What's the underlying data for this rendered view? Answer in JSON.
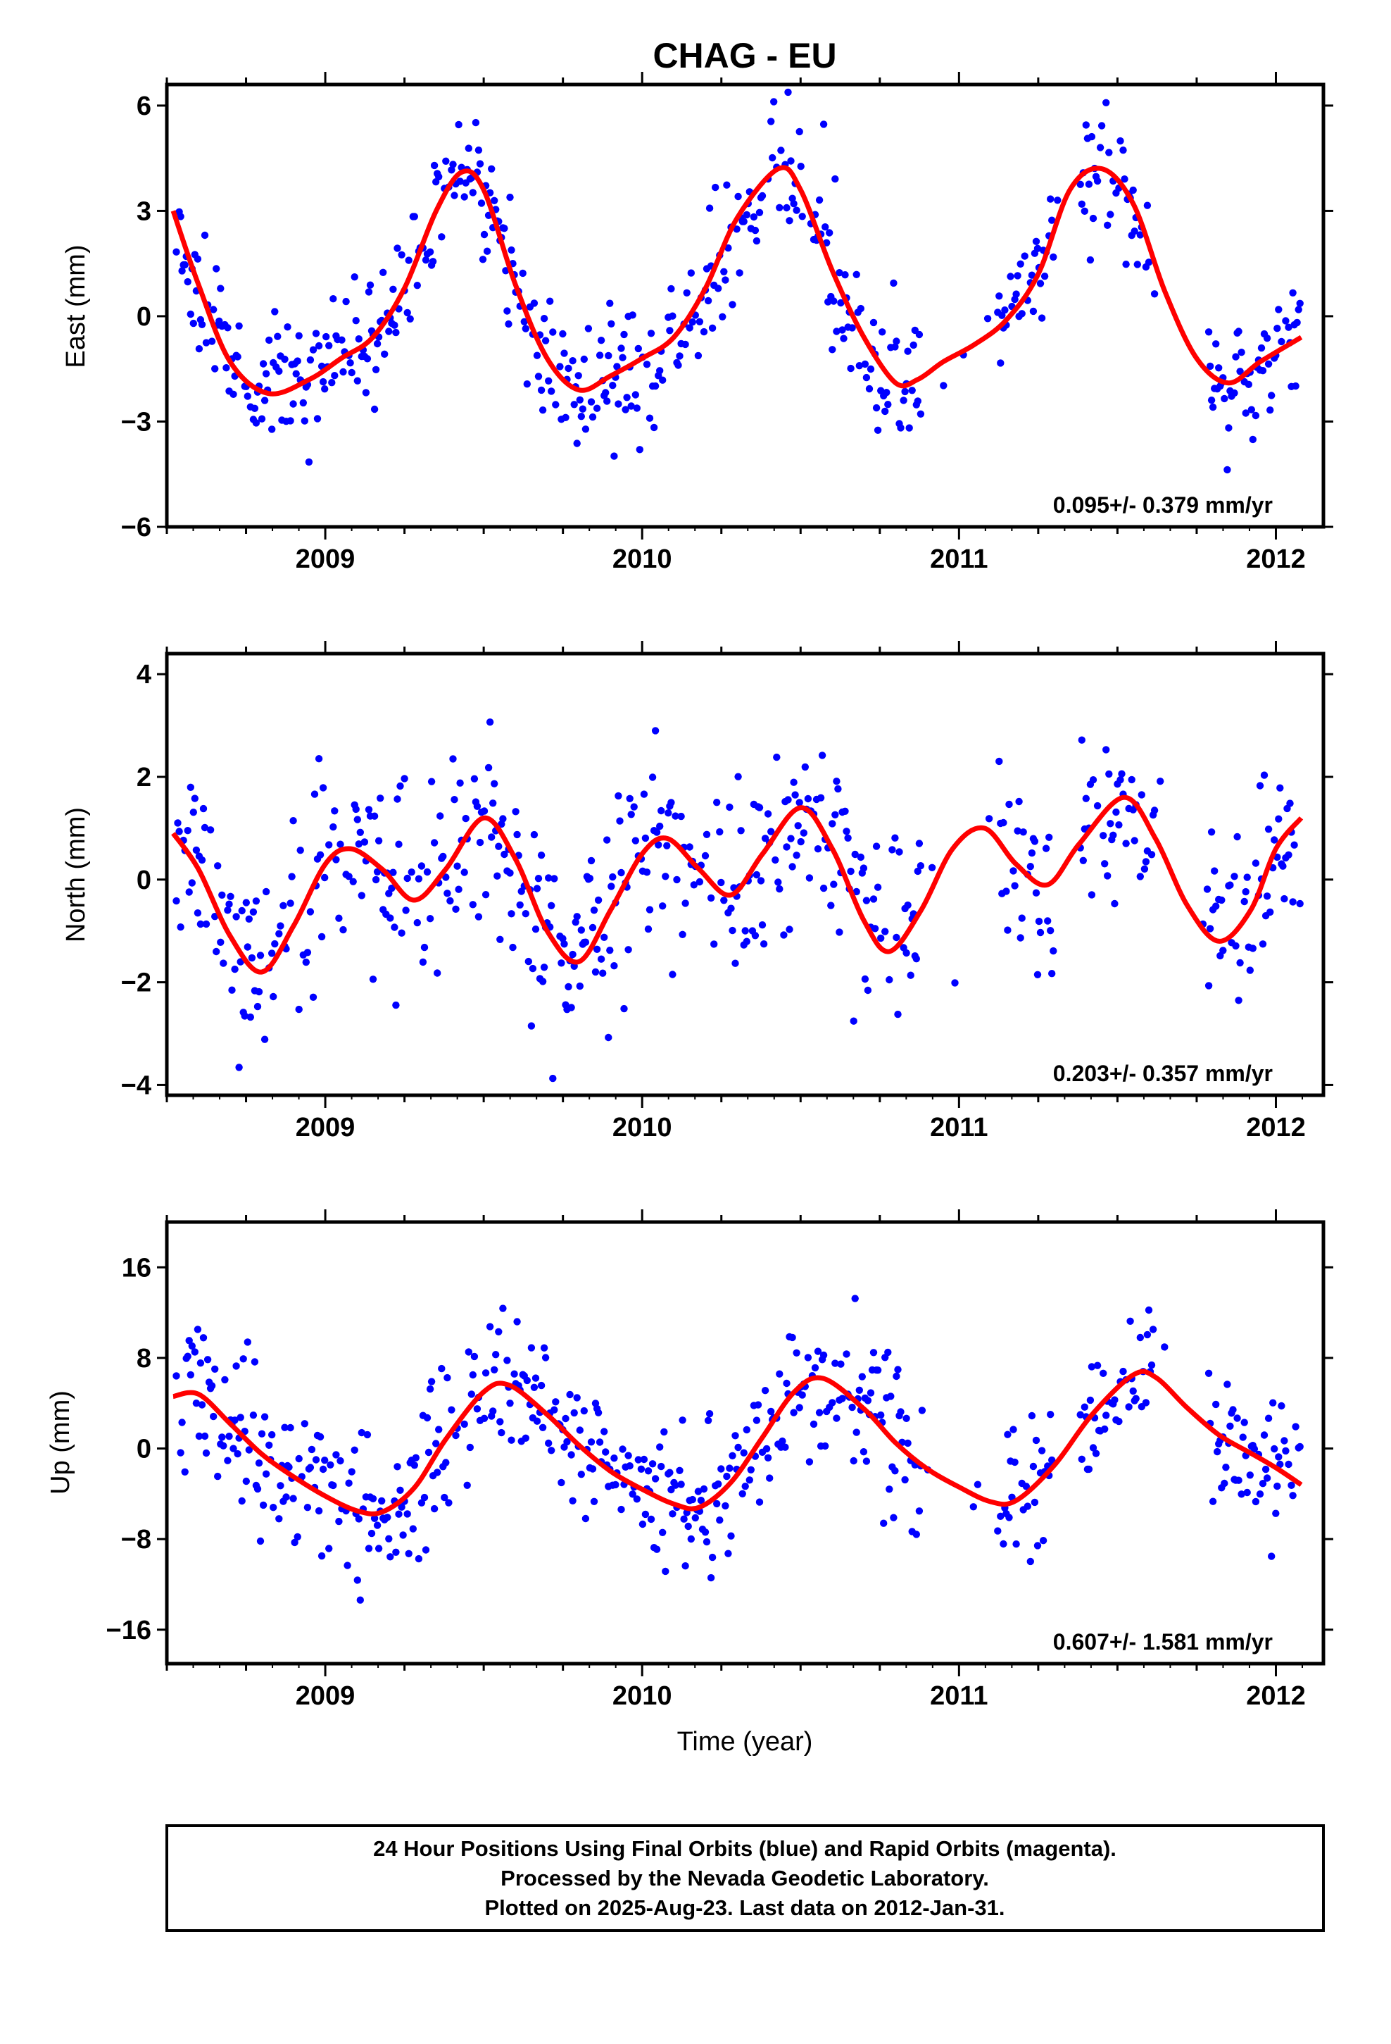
{
  "title": "CHAG - EU",
  "chart_data": [
    {
      "type": "scatter",
      "panel": "east",
      "ylabel": "East (mm)",
      "xlabel": "",
      "xlim": [
        2008.5,
        2012.15
      ],
      "ylim": [
        -6,
        6.6
      ],
      "yticks": [
        6,
        3,
        0,
        -3,
        -6
      ],
      "ytick_labels": [
        "6",
        "3",
        "0",
        "−3",
        "−6"
      ],
      "xticks": [
        2009,
        2010,
        2011,
        2012
      ],
      "xtick_labels": [
        "2009",
        "2010",
        "2011",
        "2012"
      ],
      "rate": "0.095+/- 0.379 mm/yr",
      "point_color": "#0000ff",
      "fit_color": "#ff0000",
      "fit": {
        "x": [
          2008.52,
          2008.6,
          2008.7,
          2008.82,
          2008.95,
          2009.05,
          2009.15,
          2009.25,
          2009.35,
          2009.43,
          2009.5,
          2009.6,
          2009.7,
          2009.8,
          2009.9,
          2010.0,
          2010.1,
          2010.2,
          2010.3,
          2010.43,
          2010.5,
          2010.6,
          2010.7,
          2010.8,
          2010.87,
          2010.95,
          2011.05,
          2011.15,
          2011.25,
          2011.35,
          2011.45,
          2011.55,
          2011.65,
          2011.75,
          2011.85,
          2011.95,
          2012.08
        ],
        "y": [
          3.0,
          0.9,
          -1.3,
          -2.2,
          -1.8,
          -1.2,
          -0.6,
          0.8,
          3.0,
          4.1,
          3.6,
          0.9,
          -1.2,
          -2.1,
          -1.7,
          -1.2,
          -0.6,
          0.8,
          2.8,
          4.2,
          3.6,
          1.3,
          -0.6,
          -1.9,
          -1.8,
          -1.3,
          -0.8,
          -0.1,
          1.2,
          3.6,
          4.2,
          3.2,
          0.7,
          -1.2,
          -1.9,
          -1.3,
          -0.6
        ]
      },
      "scatter": {
        "noise": 0.95,
        "seed": 11
      }
    },
    {
      "type": "scatter",
      "panel": "north",
      "ylabel": "North (mm)",
      "xlabel": "",
      "xlim": [
        2008.5,
        2012.15
      ],
      "ylim": [
        -4.2,
        4.4
      ],
      "yticks": [
        4,
        2,
        0,
        -2,
        -4
      ],
      "ytick_labels": [
        "4",
        "2",
        "0",
        "−2",
        "−4"
      ],
      "xticks": [
        2009,
        2010,
        2011,
        2012
      ],
      "xtick_labels": [
        "2009",
        "2010",
        "2011",
        "2012"
      ],
      "rate": "0.203+/- 0.357 mm/yr",
      "point_color": "#0000ff",
      "fit_color": "#ff0000",
      "fit": {
        "x": [
          2008.52,
          2008.6,
          2008.7,
          2008.8,
          2008.9,
          2009.0,
          2009.08,
          2009.18,
          2009.28,
          2009.38,
          2009.5,
          2009.6,
          2009.7,
          2009.8,
          2009.9,
          2010.0,
          2010.08,
          2010.18,
          2010.28,
          2010.38,
          2010.5,
          2010.6,
          2010.7,
          2010.78,
          2010.88,
          2010.98,
          2011.08,
          2011.18,
          2011.28,
          2011.38,
          2011.52,
          2011.62,
          2011.72,
          2011.82,
          2011.92,
          2012.0,
          2012.08
        ],
        "y": [
          0.9,
          0.2,
          -1.1,
          -1.8,
          -0.9,
          0.3,
          0.6,
          0.2,
          -0.4,
          0.2,
          1.2,
          0.4,
          -1.0,
          -1.6,
          -0.6,
          0.5,
          0.8,
          0.2,
          -0.3,
          0.5,
          1.4,
          0.6,
          -0.8,
          -1.4,
          -0.6,
          0.6,
          1.0,
          0.3,
          -0.1,
          0.7,
          1.6,
          0.8,
          -0.5,
          -1.2,
          -0.6,
          0.6,
          1.2
        ]
      },
      "scatter": {
        "noise": 0.95,
        "seed": 23
      }
    },
    {
      "type": "scatter",
      "panel": "up",
      "ylabel": "Up (mm)",
      "xlabel": "Time (year)",
      "xlim": [
        2008.5,
        2012.15
      ],
      "ylim": [
        -19,
        20
      ],
      "yticks": [
        16,
        8,
        0,
        -8,
        -16
      ],
      "ytick_labels": [
        "16",
        "8",
        "0",
        "−8",
        "−16"
      ],
      "xticks": [
        2009,
        2010,
        2011,
        2012
      ],
      "xtick_labels": [
        "2009",
        "2010",
        "2011",
        "2012"
      ],
      "rate": "0.607+/- 1.581 mm/yr",
      "point_color": "#0000ff",
      "fit_color": "#ff0000",
      "fit": {
        "x": [
          2008.52,
          2008.6,
          2008.7,
          2008.8,
          2008.9,
          2009.0,
          2009.1,
          2009.18,
          2009.28,
          2009.38,
          2009.5,
          2009.58,
          2009.7,
          2009.8,
          2009.9,
          2010.0,
          2010.1,
          2010.18,
          2010.28,
          2010.38,
          2010.48,
          2010.57,
          2010.7,
          2010.8,
          2010.9,
          2011.0,
          2011.1,
          2011.18,
          2011.3,
          2011.42,
          2011.55,
          2011.62,
          2011.72,
          2011.82,
          2011.92,
          2012.0,
          2012.08
        ],
        "y": [
          4.6,
          4.8,
          2.2,
          -0.5,
          -2.5,
          -4.2,
          -5.5,
          -5.6,
          -3.5,
          0.8,
          5.0,
          5.6,
          3.0,
          0.3,
          -2.0,
          -3.6,
          -4.9,
          -5.2,
          -3.0,
          1.0,
          5.0,
          6.2,
          3.5,
          0.5,
          -1.8,
          -3.4,
          -4.7,
          -4.6,
          -1.5,
          3.0,
          6.5,
          6.3,
          3.6,
          1.2,
          -0.4,
          -1.7,
          -3.2
        ]
      },
      "scatter": {
        "noise": 3.3,
        "seed": 37
      }
    }
  ],
  "footer": {
    "lines": [
      "24 Hour Positions Using Final Orbits (blue) and Rapid Orbits (magenta).",
      "Processed by the Nevada Geodetic Laboratory.",
      "Plotted on 2025-Aug-23. Last data on 2012-Jan-31."
    ]
  }
}
